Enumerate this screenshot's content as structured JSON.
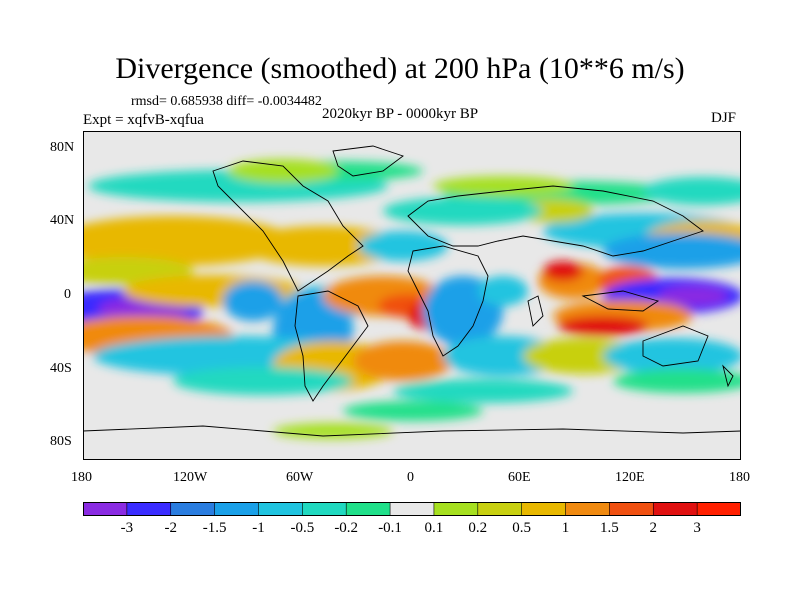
{
  "title": "Divergence (smoothed) at 200 hPa (10**6 m/s)",
  "stats": "rmsd= 0.685938 diff= -0.0034482",
  "experiment": "Expt = xqfvB-xqfua",
  "period": "2020kyr BP - 0000kyr BP",
  "season": "DJF",
  "lat_labels": [
    "80N",
    "40N",
    "0",
    "40S",
    "80S"
  ],
  "lon_labels": [
    "180",
    "120W",
    "60W",
    "0",
    "60E",
    "120E",
    "180"
  ],
  "colorbar": {
    "labels": [
      "-3",
      "-2",
      "-1.5",
      "-1",
      "-0.5",
      "-0.2",
      "-0.1",
      "0.1",
      "0.2",
      "0.5",
      "1",
      "1.5",
      "2",
      "3"
    ],
    "colors": [
      "#8a2be2",
      "#3a2cff",
      "#2a7de0",
      "#1aa0e8",
      "#20c4e0",
      "#20d9c0",
      "#20e08a",
      "#e8e8e8",
      "#a6e020",
      "#c8d010",
      "#e8b800",
      "#f08a10",
      "#f05010",
      "#e01010",
      "#ff2000"
    ]
  },
  "map_colors": {
    "background": "#e8e8e8",
    "land_outline": "#000000"
  }
}
